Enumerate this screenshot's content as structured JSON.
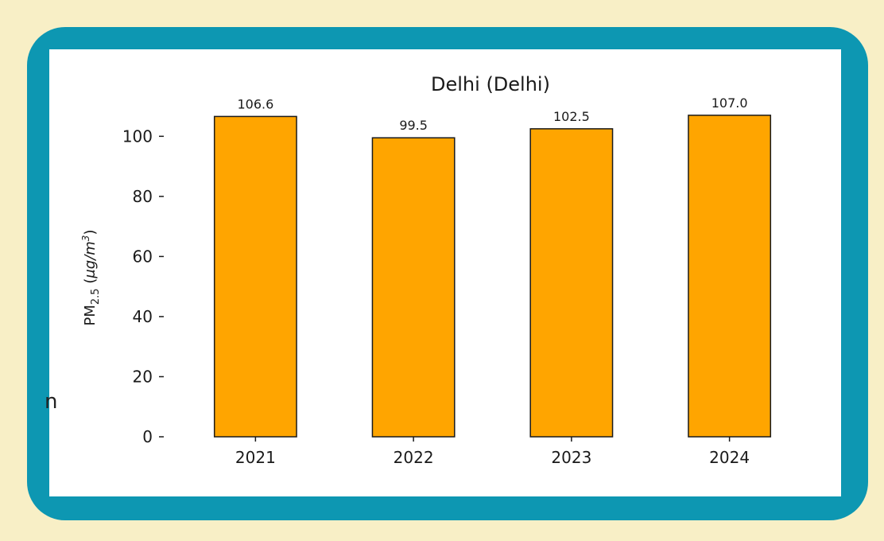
{
  "colors": {
    "page_background": "#f8efc6",
    "frame": "#0d97b2",
    "panel": "#ffffff",
    "bar_fill": "#ffa500",
    "bar_stroke": "#1a1a1a",
    "text": "#1a1a1a"
  },
  "edge_text": "n",
  "chart_data": {
    "type": "bar",
    "title": "Delhi (Delhi)",
    "ylabel": {
      "prefix": "PM",
      "subscript": "2.5",
      "unit_open": " (",
      "unit_italic": "μg/m",
      "unit_superscript": "3",
      "unit_close": ")"
    },
    "xlabel": "",
    "categories": [
      "2021",
      "2022",
      "2023",
      "2024"
    ],
    "values": [
      106.6,
      99.5,
      102.5,
      107.0
    ],
    "value_labels": [
      "106.6",
      "99.5",
      "102.5",
      "107.0"
    ],
    "ylim": [
      0,
      112
    ],
    "yticks": [
      0,
      20,
      40,
      60,
      80,
      100
    ],
    "grid": false,
    "legend": "none"
  }
}
